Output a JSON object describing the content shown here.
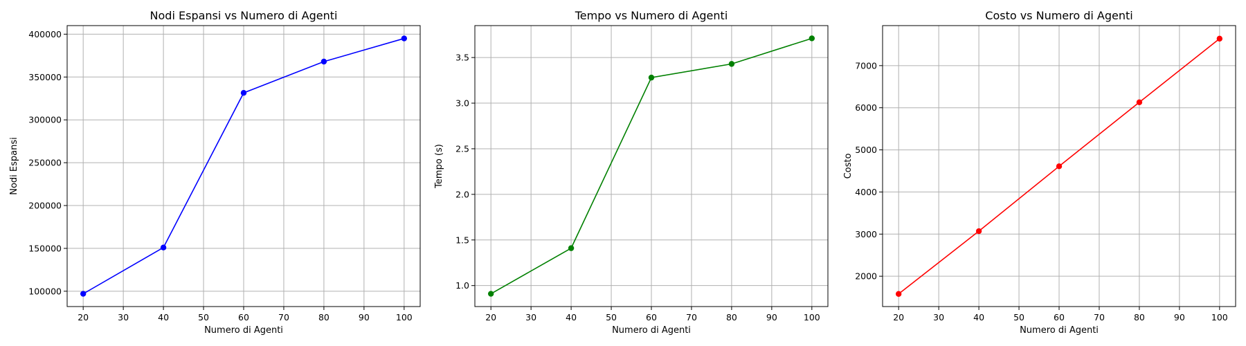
{
  "chart_data": [
    {
      "type": "line",
      "title": "Nodi Espansi vs Numero di Agenti",
      "xlabel": "Numero di Agenti",
      "ylabel": "Nodi Espansi",
      "x": [
        20,
        40,
        60,
        80,
        100
      ],
      "series": [
        {
          "values": [
            97000,
            151000,
            331500,
            368000,
            395000
          ],
          "color": "#0000ff"
        }
      ],
      "xlim": [
        16,
        104
      ],
      "ylim": [
        82100,
        410000
      ],
      "xticks": [
        20,
        30,
        40,
        50,
        60,
        70,
        80,
        90,
        100
      ],
      "yticks": [
        100000,
        150000,
        200000,
        250000,
        300000,
        350000,
        400000
      ],
      "grid": true,
      "marker": "circle"
    },
    {
      "type": "line",
      "title": "Tempo vs Numero di Agenti",
      "xlabel": "Numero di Agenti",
      "ylabel": "Tempo (s)",
      "x": [
        20,
        40,
        60,
        80,
        100
      ],
      "series": [
        {
          "values": [
            0.91,
            1.41,
            3.28,
            3.43,
            3.71
          ],
          "color": "#008000"
        }
      ],
      "xlim": [
        16,
        104
      ],
      "ylim": [
        0.77,
        3.85
      ],
      "xticks": [
        20,
        30,
        40,
        50,
        60,
        70,
        80,
        90,
        100
      ],
      "yticks": [
        1.0,
        1.5,
        2.0,
        2.5,
        3.0,
        3.5
      ],
      "ytick_labels": [
        "1.0",
        "1.5",
        "2.0",
        "2.5",
        "3.0",
        "3.5"
      ],
      "grid": true,
      "marker": "circle"
    },
    {
      "type": "line",
      "title": "Costo vs Numero di Agenti",
      "xlabel": "Numero di Agenti",
      "ylabel": "Costo",
      "x": [
        20,
        40,
        60,
        80,
        100
      ],
      "series": [
        {
          "values": [
            1580,
            3070,
            4610,
            6130,
            7640
          ],
          "color": "#ff0000"
        }
      ],
      "xlim": [
        16,
        104
      ],
      "ylim": [
        1280,
        7950
      ],
      "xticks": [
        20,
        30,
        40,
        50,
        60,
        70,
        80,
        90,
        100
      ],
      "yticks": [
        2000,
        3000,
        4000,
        5000,
        6000,
        7000
      ],
      "grid": true,
      "marker": "circle"
    }
  ]
}
